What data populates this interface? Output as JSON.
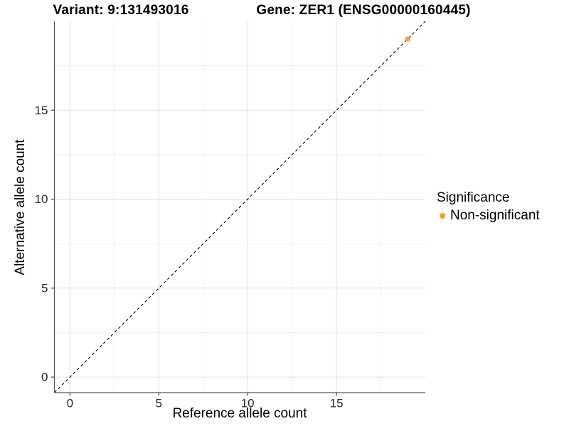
{
  "titles": {
    "variant": "Variant: 9:131493016",
    "gene": "Gene: ZER1 (ENSG00000160445)"
  },
  "axes": {
    "x": {
      "label": "Reference allele count",
      "major_ticks": [
        0,
        5,
        10,
        15
      ],
      "minor_ticks": [
        2.5,
        7.5,
        12.5,
        17.5
      ],
      "domain": [
        -0.875,
        20
      ]
    },
    "y": {
      "label": "Alternative allele count",
      "major_ticks": [
        0,
        5,
        10,
        15
      ],
      "minor_ticks": [
        2.5,
        7.5,
        12.5,
        17.5
      ],
      "domain": [
        -0.875,
        20
      ]
    }
  },
  "legend": {
    "title": "Significance",
    "items": [
      {
        "label": "Non-significant",
        "color": "#F8A12B"
      }
    ]
  },
  "chart_data": {
    "type": "scatter",
    "title": "Variant: 9:131493016    Gene: ZER1 (ENSG00000160445)",
    "xlabel": "Reference allele count",
    "ylabel": "Alternative allele count",
    "xlim": [
      -0.875,
      20
    ],
    "ylim": [
      -0.875,
      20
    ],
    "x_ticks": [
      0,
      5,
      10,
      15
    ],
    "y_ticks": [
      0,
      5,
      10,
      15
    ],
    "grid": "on",
    "legend_title": "Significance",
    "legend_position": "right",
    "series": [
      {
        "name": "Non-significant",
        "color": "#F8A12B",
        "points": [
          {
            "x": 19,
            "y": 19
          }
        ]
      }
    ],
    "reference_line": {
      "type": "identity y=x",
      "style": "dashed",
      "color": "#000000"
    }
  },
  "colors": {
    "point": "#F8A12B",
    "grid_major": "#E2E2E2",
    "grid_minor": "#F1F1F1",
    "axis_line": "#565656",
    "tick_mark": "#565656",
    "tick_text": "#262626",
    "identity_line": "#000000",
    "background": "#FFFFFF"
  }
}
